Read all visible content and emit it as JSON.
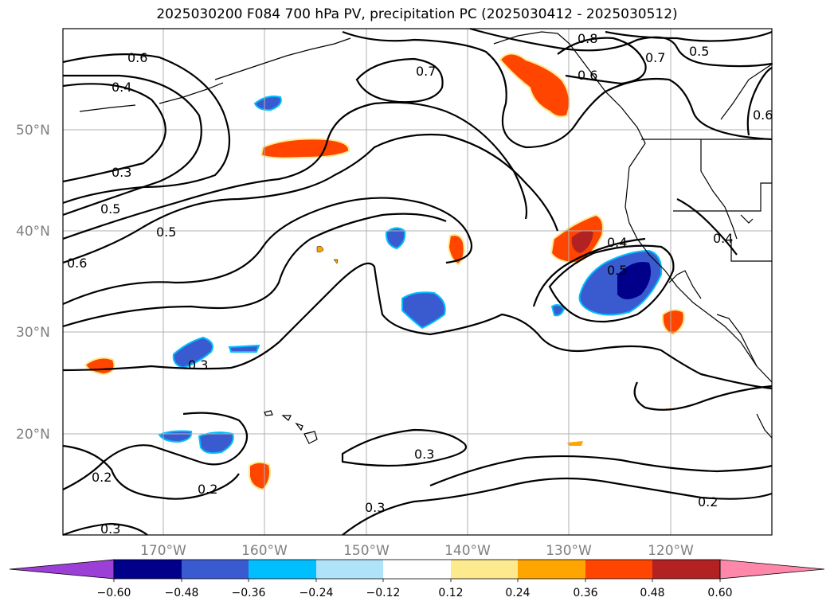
{
  "title": "2025030200 F084 700 hPa PV, precipitation PC (2025030412 - 2025030512)",
  "lat_labels": [
    "50°N",
    "40°N",
    "30°N",
    "20°N"
  ],
  "lon_labels": [
    "170°W",
    "160°W",
    "150°W",
    "140°W",
    "130°W",
    "120°W"
  ],
  "contour_labels": [
    "0.6",
    "0.4",
    "0.3",
    "0.5",
    "0.5",
    "0.6",
    "0.7",
    "0.8",
    "0.6",
    "0.5",
    "0.7",
    "0.6",
    "0.4",
    "0.5",
    "0.4",
    "0.3",
    "0.3",
    "0.2",
    "0.2",
    "0.3",
    "0.3",
    "0.2"
  ],
  "colorbar": {
    "ticks": [
      "−0.60",
      "−0.48",
      "−0.36",
      "−0.24",
      "−0.12",
      "0.12",
      "0.24",
      "0.36",
      "0.48",
      "0.60"
    ],
    "colors": [
      "#9b3fd6",
      "#00008b",
      "#3a5bd0",
      "#00bfff",
      "#aee3fa",
      "#ffffff",
      "#fde98e",
      "#ffa500",
      "#ff4500",
      "#b22222",
      "#ff88aa"
    ]
  },
  "colors": {
    "contour": "#000000",
    "grid": "#b0b0b0",
    "coast": "#000000"
  }
}
